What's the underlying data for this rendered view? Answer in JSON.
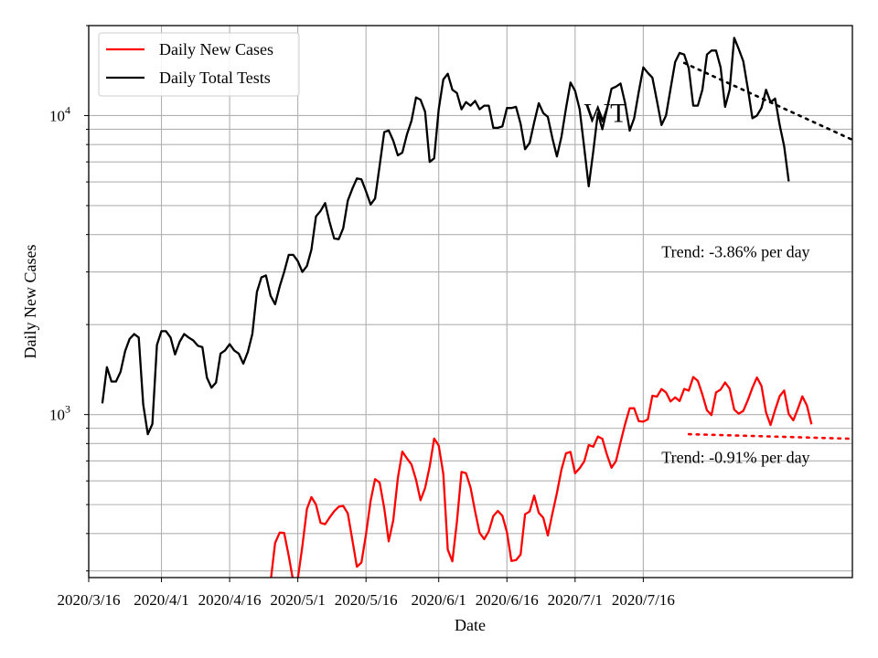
{
  "chart_data": {
    "type": "line",
    "xlabel": "Date",
    "ylabel": "Daily New Cases",
    "yscale": "log",
    "ylim": [
      285,
      20000
    ],
    "x_start": "2020-03-16",
    "x_end": "2020-08-31",
    "grid": true,
    "legend_position": "top-left",
    "x_ticks": [
      "2020/3/16",
      "2020/4/1",
      "2020/4/16",
      "2020/5/1",
      "2020/5/16",
      "2020/6/1",
      "2020/6/16",
      "2020/7/1",
      "2020/7/16"
    ],
    "x_tick_dates": [
      "2020-03-16",
      "2020-04-01",
      "2020-04-16",
      "2020-05-01",
      "2020-05-16",
      "2020-06-01",
      "2020-06-16",
      "2020-07-01",
      "2020-07-16"
    ],
    "y_ticks": [
      {
        "value": 1000,
        "base": "10",
        "exp": "3"
      },
      {
        "value": 10000,
        "base": "10",
        "exp": "4"
      }
    ],
    "series": [
      {
        "name": "Daily New Cases",
        "color": "#ff0000",
        "start_date": "2020-03-16",
        "values": [
          null,
          null,
          null,
          null,
          null,
          null,
          null,
          null,
          null,
          null,
          null,
          null,
          null,
          null,
          null,
          null,
          null,
          null,
          282,
          null,
          null,
          null,
          null,
          null,
          null,
          null,
          null,
          null,
          null,
          null,
          null,
          null,
          null,
          null,
          null,
          null,
          null,
          null,
          null,
          null,
          275,
          372,
          403,
          402,
          337,
          276,
          282,
          363,
          484,
          530,
          500,
          434,
          430,
          453,
          475,
          492,
          495,
          467,
          380,
          310,
          320,
          398,
          514,
          608,
          592,
          487,
          377,
          443,
          613,
          752,
          714,
          681,
          605,
          517,
          568,
          670,
          831,
          788,
          634,
          353,
          323,
          438,
          643,
          637,
          570,
          474,
          402,
          383,
          407,
          458,
          476,
          459,
          404,
          324,
          326,
          340,
          464,
          474,
          536,
          469,
          452,
          394,
          467,
          546,
          655,
          742,
          750,
          636,
          662,
          697,
          791,
          781,
          844,
          830,
          735,
          664,
          699,
          808,
          930,
          1049,
          1050,
          950,
          947,
          964,
          1156,
          1148,
          1217,
          1186,
          1106,
          1142,
          1110,
          1218,
          1203,
          1336,
          1296,
          1166,
          1033,
          996,
          1186,
          1212,
          1281,
          1221,
          1039,
          1007,
          1029,
          1118,
          1229,
          1330,
          1247,
          1016,
          923,
          1036,
          1152,
          1204,
          1004,
          957,
          1046,
          1151,
          1072,
          928
        ]
      },
      {
        "name": "Daily Total Tests",
        "color": "#000000",
        "start_date": "2020-03-16",
        "values": [
          null,
          null,
          null,
          1090,
          1440,
          1290,
          1290,
          1390,
          1630,
          1790,
          1860,
          1810,
          1080,
          860,
          930,
          1710,
          1900,
          1900,
          1810,
          1590,
          1750,
          1860,
          1810,
          1770,
          1700,
          1680,
          1330,
          1230,
          1280,
          1600,
          1640,
          1720,
          1640,
          1600,
          1480,
          1620,
          1860,
          2570,
          2880,
          2920,
          2500,
          2340,
          2680,
          3000,
          3420,
          3420,
          3260,
          3000,
          3140,
          3560,
          4600,
          4800,
          5100,
          4400,
          3880,
          3860,
          4200,
          5200,
          5700,
          6160,
          6120,
          5580,
          5040,
          5280,
          6800,
          8800,
          8920,
          8240,
          7360,
          7520,
          8640,
          9600,
          11500,
          11300,
          10300,
          7000,
          7200,
          10500,
          13200,
          13800,
          12200,
          11900,
          10500,
          11100,
          10800,
          11200,
          10500,
          10800,
          10800,
          9100,
          9100,
          9200,
          10600,
          10600,
          10700,
          9400,
          7720,
          8100,
          9500,
          11000,
          10200,
          9900,
          8400,
          7300,
          8500,
          10600,
          12900,
          12100,
          10500,
          7800,
          5800,
          7600,
          10200,
          9000,
          10500,
          12300,
          12500,
          12800,
          11000,
          8900,
          9800,
          12000,
          14500,
          13900,
          13400,
          11200,
          9300,
          10000,
          12300,
          15100,
          16200,
          16000,
          14400,
          10800,
          10800,
          12200,
          16000,
          16500,
          16500,
          14500,
          10700,
          12200,
          18200,
          16700,
          15200,
          12300,
          9800,
          10000,
          10600,
          12200,
          11100,
          11400,
          9300,
          7900,
          6030
        ]
      }
    ],
    "trend_lines": [
      {
        "series": "Daily Total Tests",
        "style": "dotted",
        "color": "#000000",
        "from_date": "2020-07-25",
        "to_date": "2020-08-31",
        "from_value": 15000,
        "to_value": 8300
      },
      {
        "series": "Daily New Cases",
        "style": "dotted",
        "color": "#ff0000",
        "from_date": "2020-07-26",
        "to_date": "2020-08-31",
        "from_value": 860,
        "to_value": 830
      }
    ],
    "annotations": [
      {
        "text": "Trend: -3.86% per day",
        "date": "2020-07-20",
        "value": 3500
      },
      {
        "text": "Trend: -0.91% per day",
        "date": "2020-07-20",
        "value": 720
      },
      {
        "text": "WT",
        "date": "2020-07-03",
        "value": 10200
      }
    ]
  }
}
